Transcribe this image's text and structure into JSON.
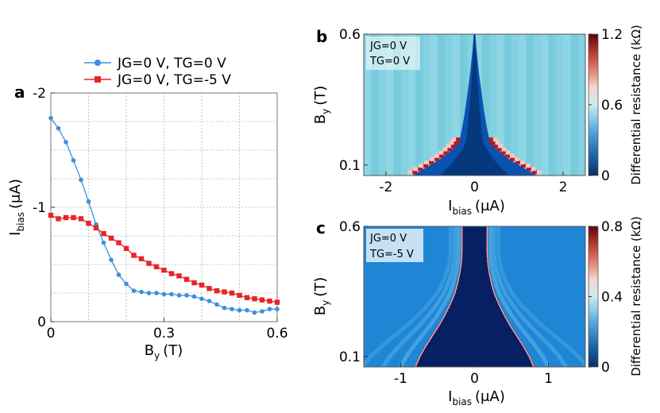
{
  "chart_data": [
    {
      "panel": "a",
      "type": "line",
      "xlabel": "B",
      "xlabel_sub": "y",
      "xlabel_unit": "(T)",
      "ylabel": "I",
      "ylabel_sub": "bias",
      "ylabel_unit": "(μA)",
      "xlim": [
        0,
        0.6
      ],
      "ylim": [
        0,
        -2
      ],
      "xticks": [
        0,
        0.3,
        0.6
      ],
      "xtick_labels": [
        "0",
        "0.3",
        "0.6"
      ],
      "yticks": [
        0,
        -1,
        -2
      ],
      "ytick_labels": [
        "0",
        "-1",
        "-2"
      ],
      "grid": true,
      "legend_placement": "top",
      "series": [
        {
          "name": "JG=0 V, TG=0 V",
          "color": "#3d8fe0",
          "marker": "circle",
          "x": [
            0,
            0.02,
            0.04,
            0.06,
            0.08,
            0.1,
            0.12,
            0.14,
            0.16,
            0.18,
            0.2,
            0.22,
            0.24,
            0.26,
            0.28,
            0.3,
            0.32,
            0.34,
            0.36,
            0.38,
            0.4,
            0.42,
            0.44,
            0.46,
            0.48,
            0.5,
            0.52,
            0.54,
            0.56,
            0.58,
            0.6
          ],
          "y": [
            -1.78,
            -1.69,
            -1.57,
            -1.41,
            -1.24,
            -1.05,
            -0.85,
            -0.69,
            -0.54,
            -0.41,
            -0.33,
            -0.27,
            -0.26,
            -0.25,
            -0.25,
            -0.24,
            -0.24,
            -0.23,
            -0.23,
            -0.22,
            -0.2,
            -0.18,
            -0.15,
            -0.12,
            -0.11,
            -0.1,
            -0.1,
            -0.08,
            -0.09,
            -0.11,
            -0.11
          ]
        },
        {
          "name": "JG=0 V, TG=-5 V",
          "color": "#e8232a",
          "marker": "square",
          "x": [
            0,
            0.02,
            0.04,
            0.06,
            0.08,
            0.1,
            0.12,
            0.14,
            0.16,
            0.18,
            0.2,
            0.22,
            0.24,
            0.26,
            0.28,
            0.3,
            0.32,
            0.34,
            0.36,
            0.38,
            0.4,
            0.42,
            0.44,
            0.46,
            0.48,
            0.5,
            0.52,
            0.54,
            0.56,
            0.58,
            0.6
          ],
          "y": [
            -0.93,
            -0.9,
            -0.91,
            -0.91,
            -0.9,
            -0.86,
            -0.82,
            -0.77,
            -0.73,
            -0.69,
            -0.64,
            -0.58,
            -0.55,
            -0.51,
            -0.48,
            -0.45,
            -0.42,
            -0.4,
            -0.37,
            -0.34,
            -0.32,
            -0.29,
            -0.27,
            -0.26,
            -0.25,
            -0.23,
            -0.21,
            -0.2,
            -0.19,
            -0.18,
            -0.17
          ]
        }
      ]
    },
    {
      "panel": "b",
      "type": "heatmap",
      "xlabel": "I",
      "xlabel_sub": "bias",
      "xlabel_unit": "(μA)",
      "ylabel": "B",
      "ylabel_sub": "y",
      "ylabel_unit": "(T)",
      "xlim": [
        -2.5,
        2.5
      ],
      "ylim": [
        0.06,
        0.6
      ],
      "xticks": [
        -2,
        0,
        2
      ],
      "xtick_labels": [
        "-2",
        "0",
        "2"
      ],
      "yticks": [
        0.1,
        0.6
      ],
      "ytick_labels": [
        "0.1",
        "0.6"
      ],
      "annotation": [
        "JG=0 V",
        "TG=0 V"
      ],
      "colorbar_label": "Differential resistance (kΩ)",
      "colorbar_range": [
        0,
        1.2
      ],
      "colorbar_ticks": [
        0,
        0.6,
        1.2
      ],
      "colorbar_tick_labels": [
        "0",
        "0.6",
        "1.2"
      ],
      "switching_current_B": [
        0.06,
        0.08,
        0.1,
        0.12,
        0.14,
        0.16,
        0.18,
        0.2,
        0.25,
        0.3,
        0.35,
        0.4,
        0.45,
        0.5,
        0.55,
        0.6
      ],
      "switching_current_I": [
        1.4,
        1.2,
        1.0,
        0.8,
        0.65,
        0.5,
        0.4,
        0.33,
        0.27,
        0.22,
        0.18,
        0.14,
        0.1,
        0.07,
        0.04,
        0.02
      ]
    },
    {
      "panel": "c",
      "type": "heatmap",
      "xlabel": "I",
      "xlabel_sub": "bias",
      "xlabel_unit": "(μA)",
      "ylabel": "B",
      "ylabel_sub": "y",
      "ylabel_unit": "(T)",
      "xlim": [
        -1.5,
        1.5
      ],
      "ylim": [
        0.06,
        0.6
      ],
      "xticks": [
        -1,
        0,
        1
      ],
      "xtick_labels": [
        "-1",
        "0",
        "1"
      ],
      "yticks": [
        0.1,
        0.6
      ],
      "ytick_labels": [
        "0.1",
        "0.6"
      ],
      "annotation": [
        "JG=0 V",
        "TG=-5 V"
      ],
      "colorbar_label": "Differential resistance (kΩ)",
      "colorbar_range": [
        0,
        0.8
      ],
      "colorbar_ticks": [
        0,
        0.4,
        0.8
      ],
      "colorbar_tick_labels": [
        "0",
        "0.4",
        "0.8"
      ],
      "switching_current_B": [
        0.06,
        0.1,
        0.14,
        0.18,
        0.22,
        0.26,
        0.3,
        0.34,
        0.38,
        0.42,
        0.46,
        0.5,
        0.54,
        0.58,
        0.6
      ],
      "switching_current_I": [
        0.8,
        0.74,
        0.66,
        0.57,
        0.48,
        0.4,
        0.33,
        0.27,
        0.23,
        0.2,
        0.18,
        0.17,
        0.17,
        0.17,
        0.17
      ]
    }
  ]
}
